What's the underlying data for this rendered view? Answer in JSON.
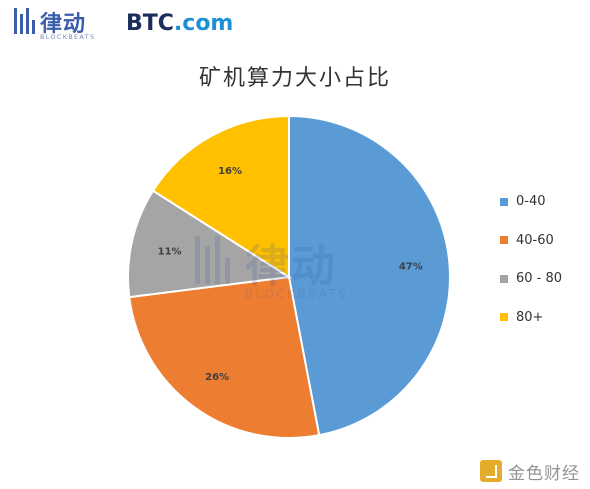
{
  "brand": {
    "blockbeats_cn": "律动",
    "blockbeats_en": "BLOCKBEATS",
    "btc_main": "BTC",
    "btc_tail": ".com"
  },
  "watermarks": {
    "center_cn": "律动",
    "center_en": "BLOCKBEATS",
    "corner_text": "金色财经"
  },
  "chart_data": {
    "type": "pie",
    "title": "矿机算力大小占比",
    "categories": [
      "0-40",
      "40-60",
      "60 - 80",
      "80+"
    ],
    "values": [
      47,
      26,
      11,
      16
    ],
    "data_labels": [
      "47%",
      "26%",
      "11%",
      "16%"
    ],
    "colors": [
      "#5b9bd5",
      "#ed7d31",
      "#a5a5a5",
      "#ffc000"
    ],
    "legend_position": "right",
    "start_angle_deg": 0,
    "direction": "clockwise"
  }
}
